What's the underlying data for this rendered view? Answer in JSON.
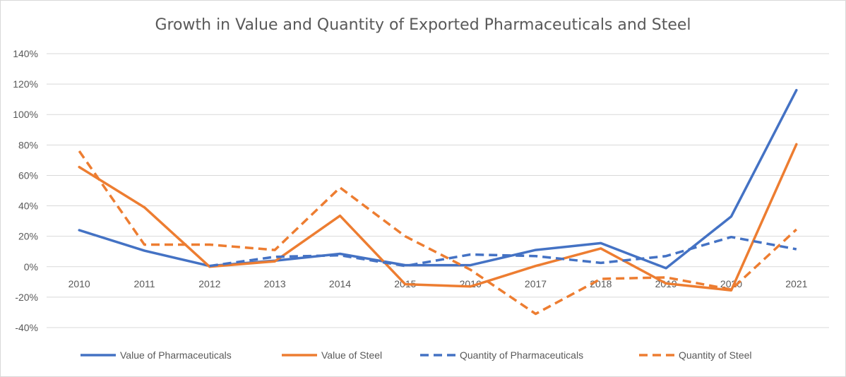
{
  "chart_data": {
    "type": "line",
    "title": "Growth in Value and Quantity of Exported Pharmaceuticals and Steel",
    "xlabel": "",
    "ylabel": "",
    "categories": [
      "2010",
      "2011",
      "2012",
      "2013",
      "2014",
      "2015",
      "2016",
      "2017",
      "2018",
      "2019",
      "2020",
      "2021"
    ],
    "ylim": [
      -0.4,
      1.4
    ],
    "yticks": [
      -0.4,
      -0.2,
      0,
      0.2,
      0.4,
      0.6,
      0.8,
      1.0,
      1.2,
      1.4
    ],
    "ytick_labels": [
      "-40%",
      "-20%",
      "0%",
      "20%",
      "40%",
      "60%",
      "80%",
      "100%",
      "120%",
      "140%"
    ],
    "grid": true,
    "legend_position": "bottom",
    "series": [
      {
        "name": "Value of Pharmaceuticals",
        "color": "#4472C4",
        "dash": "solid",
        "values": [
          0.24,
          0.105,
          0.005,
          0.04,
          0.085,
          0.01,
          0.01,
          0.11,
          0.155,
          -0.01,
          0.33,
          1.16
        ]
      },
      {
        "name": "Value of Steel",
        "color": "#ED7D31",
        "dash": "solid",
        "values": [
          0.655,
          0.39,
          0.0,
          0.035,
          0.335,
          -0.115,
          -0.13,
          0.005,
          0.12,
          -0.11,
          -0.155,
          0.805
        ]
      },
      {
        "name": "Quantity of Pharmaceuticals",
        "color": "#4472C4",
        "dash": "dashed",
        "values": [
          null,
          null,
          0.005,
          0.065,
          0.075,
          0.005,
          0.08,
          0.07,
          0.025,
          0.07,
          0.195,
          0.115
        ]
      },
      {
        "name": "Quantity of Steel",
        "color": "#ED7D31",
        "dash": "dashed",
        "values": [
          0.76,
          0.145,
          0.145,
          0.11,
          0.52,
          0.2,
          -0.02,
          -0.31,
          -0.08,
          -0.07,
          -0.15,
          0.245
        ]
      }
    ]
  }
}
